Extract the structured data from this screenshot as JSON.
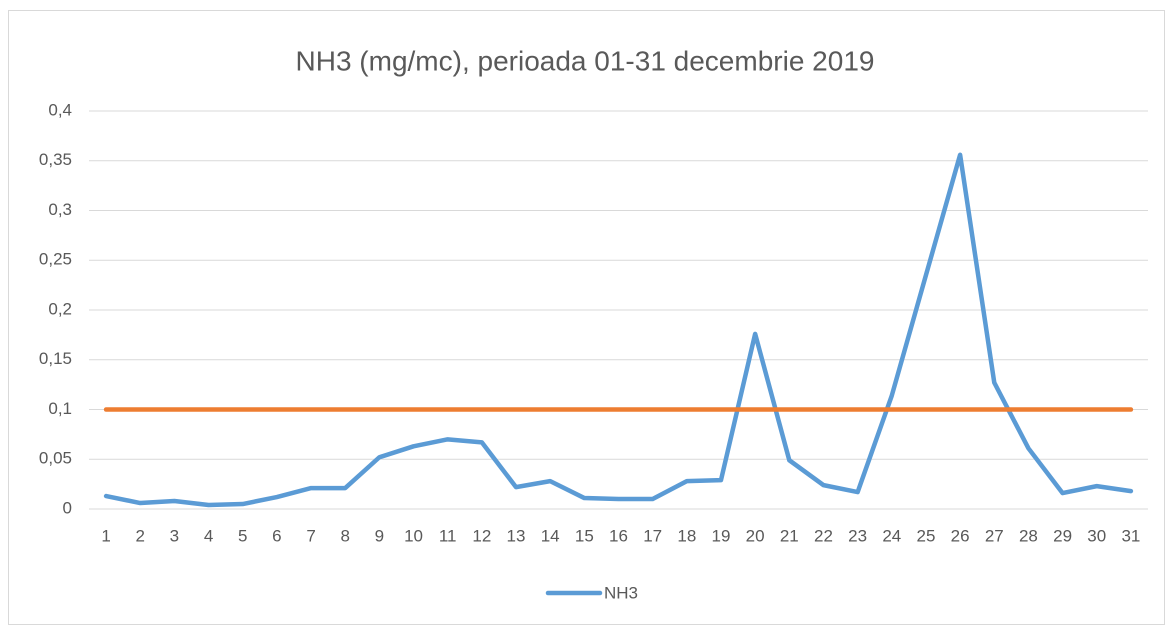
{
  "chart_data": {
    "type": "line",
    "title": "NH3 (mg/mc), perioada 01-31 decembrie 2019",
    "categories": [
      "1",
      "2",
      "3",
      "4",
      "5",
      "6",
      "7",
      "8",
      "9",
      "10",
      "11",
      "12",
      "13",
      "14",
      "15",
      "16",
      "17",
      "18",
      "19",
      "20",
      "21",
      "22",
      "23",
      "24",
      "25",
      "26",
      "27",
      "28",
      "29",
      "30",
      "31"
    ],
    "series": [
      {
        "name": "NH3",
        "color": "#5b9bd5",
        "values": [
          0.013,
          0.006,
          0.008,
          0.004,
          0.005,
          0.012,
          0.021,
          0.021,
          0.052,
          0.063,
          0.07,
          0.067,
          0.022,
          0.028,
          0.011,
          0.01,
          0.01,
          0.028,
          0.029,
          0.176,
          0.049,
          0.024,
          0.017,
          0.114,
          0.235,
          0.356,
          0.127,
          0.061,
          0.016,
          0.023,
          0.018
        ]
      },
      {
        "color": "#ed7d31",
        "values": [
          0.1,
          0.1,
          0.1,
          0.1,
          0.1,
          0.1,
          0.1,
          0.1,
          0.1,
          0.1,
          0.1,
          0.1,
          0.1,
          0.1,
          0.1,
          0.1,
          0.1,
          0.1,
          0.1,
          0.1,
          0.1,
          0.1,
          0.1,
          0.1,
          0.1,
          0.1,
          0.1,
          0.1,
          0.1,
          0.1,
          0.1
        ]
      }
    ],
    "ylim": [
      0,
      0.4
    ],
    "yticks": [
      0,
      {
        "value": 0.05,
        "label": "0,05"
      },
      {
        "value": 0.1,
        "label": "0,1"
      },
      {
        "value": 0.15,
        "label": "0,15"
      },
      {
        "value": 0.2,
        "label": "0,2"
      },
      {
        "value": 0.25,
        "label": "0,25"
      },
      {
        "value": 0.3,
        "label": "0,3"
      },
      {
        "value": 0.35,
        "label": "0,35"
      },
      {
        "value": 0.4,
        "label": "0,4"
      }
    ],
    "grid": true,
    "legend": "bottom"
  }
}
